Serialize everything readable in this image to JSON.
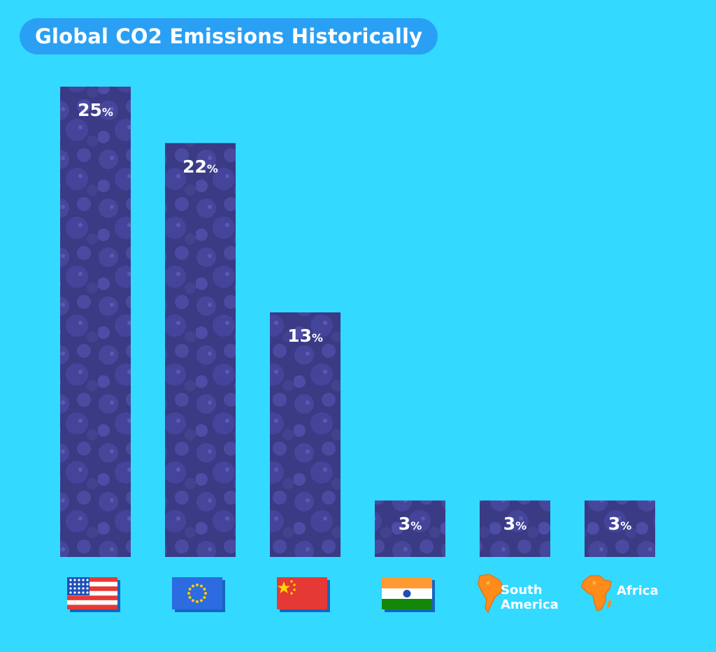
{
  "title": "Global CO2 Emissions Historically",
  "colors": {
    "background": "#33d9ff",
    "title_pill": "#2aa0f5",
    "bar": "#3a3a85",
    "bar_blob": "#4a4aa0",
    "label": "#ffffff",
    "continent": "#ff8c1a"
  },
  "chart_data": {
    "type": "bar",
    "categories": [
      "USA",
      "EU",
      "China",
      "India",
      "South America",
      "Africa"
    ],
    "category_icons": [
      "us-flag-icon",
      "eu-flag-icon",
      "china-flag-icon",
      "india-flag-icon",
      "south-america-icon",
      "africa-icon"
    ],
    "category_labels": [
      "",
      "",
      "",
      "",
      "South America",
      "Africa"
    ],
    "values": [
      25,
      22,
      13,
      3,
      3,
      3
    ],
    "value_labels": [
      "25%",
      "22%",
      "13%",
      "3%",
      "3%",
      "3%"
    ],
    "ylim": [
      0,
      25
    ],
    "grid": false,
    "legend": "none"
  }
}
